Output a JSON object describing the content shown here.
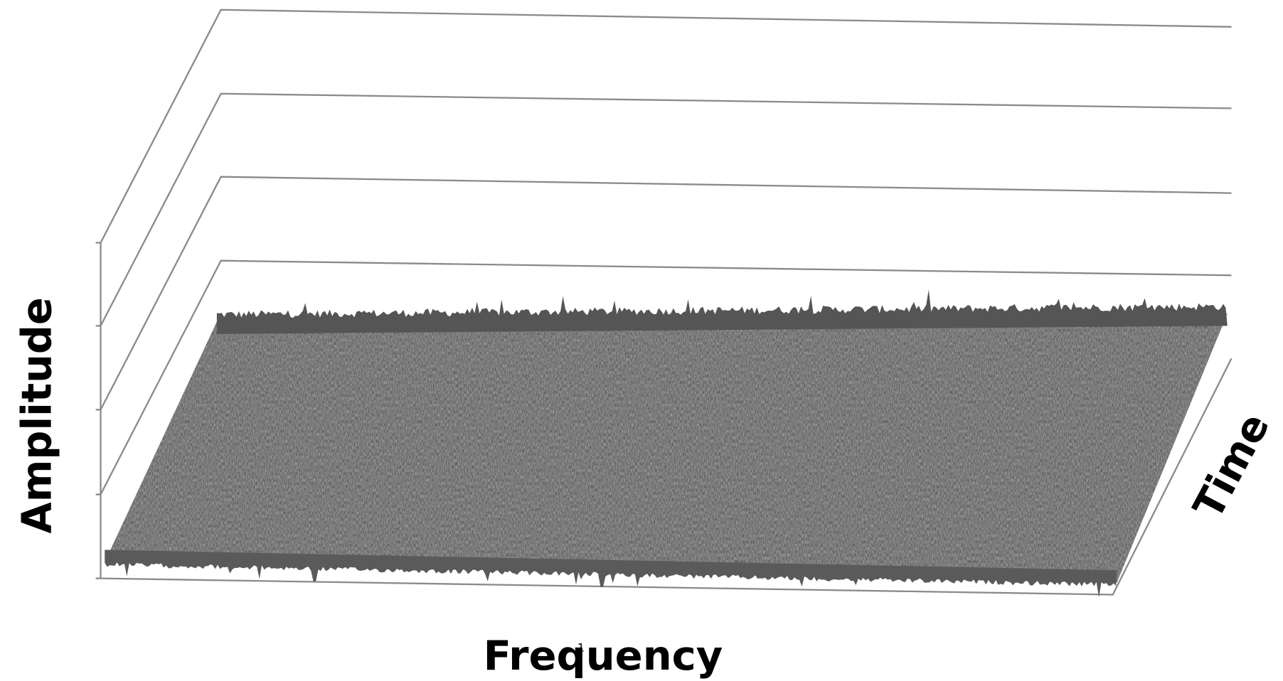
{
  "chart_data": {
    "type": "surface",
    "x_label": "Frequency",
    "y_label": "Amplitude",
    "z_label": "Time",
    "annotation": "1"
  }
}
